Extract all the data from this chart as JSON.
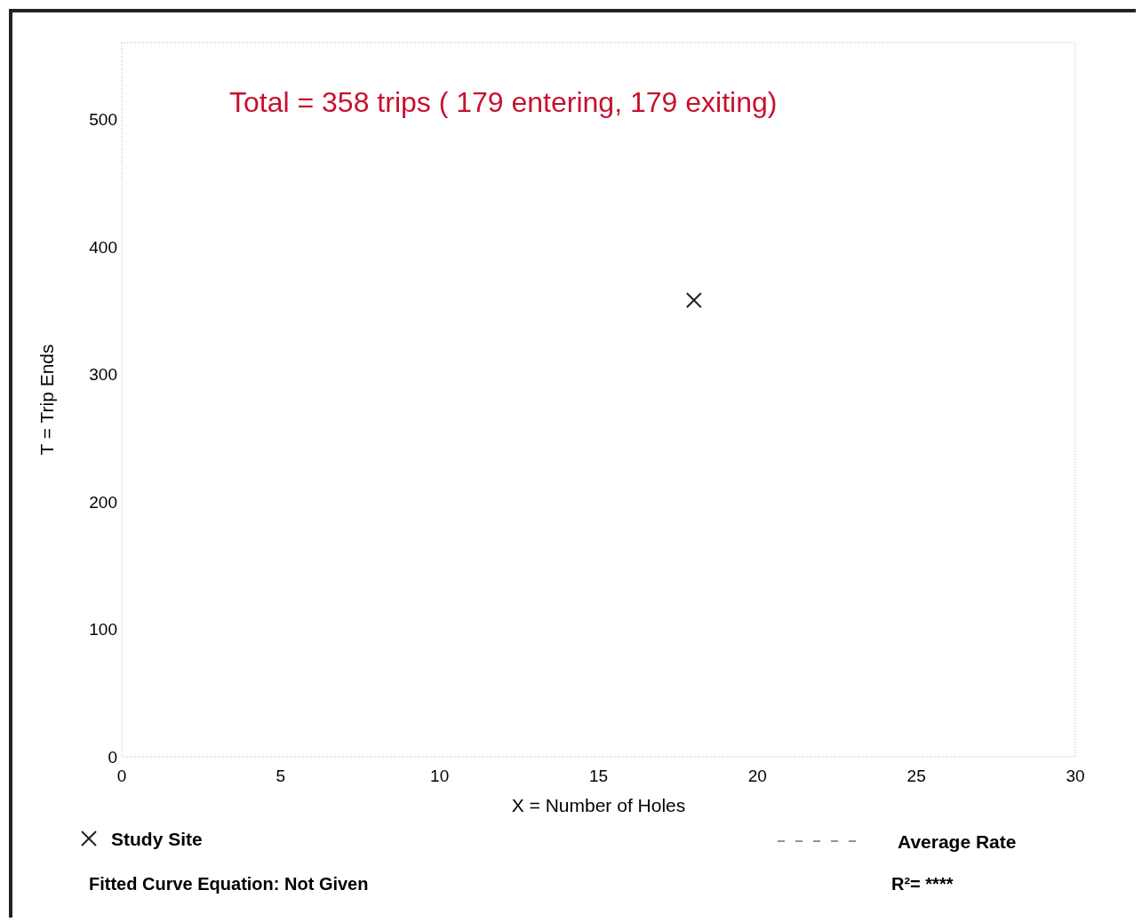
{
  "chart_data": {
    "type": "scatter",
    "title": "Total = 358 trips ( 179 entering, 179 exiting)",
    "xlabel": "X = Number of Holes",
    "ylabel": "T = Trip Ends",
    "xlim": [
      0,
      30
    ],
    "ylim": [
      0,
      560
    ],
    "xticks": [
      0,
      5,
      10,
      15,
      20,
      25,
      30
    ],
    "yticks": [
      0,
      100,
      200,
      300,
      400,
      500
    ],
    "series": [
      {
        "name": "Study Site",
        "type": "scatter",
        "marker": "cross",
        "color": "#222222",
        "x": [
          18
        ],
        "values": [
          358
        ]
      },
      {
        "name": "Average Rate",
        "type": "line",
        "line_style": "dashed",
        "color": "#4a7f8c"
      }
    ],
    "legend": "bottom",
    "grid": false,
    "annotations": [
      "Fitted Curve Equation: Not Given",
      "R²= ****"
    ]
  }
}
